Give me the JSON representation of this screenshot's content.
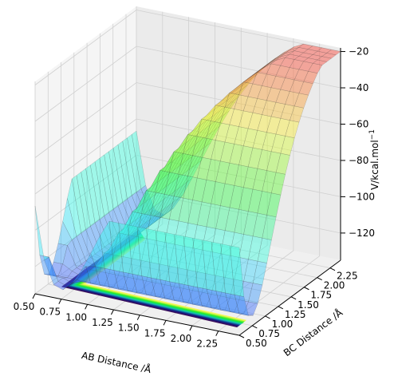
{
  "chart_data": {
    "type": "surface3d",
    "x_axis": {
      "label": "AB Distance /Å",
      "ticks": [
        "0.50",
        "0.75",
        "1.00",
        "1.25",
        "1.50",
        "1.75",
        "2.00",
        "2.25"
      ],
      "range": [
        0.5,
        2.45
      ]
    },
    "y_axis": {
      "label": "BC Distance /Å",
      "ticks": [
        "0.50",
        "0.75",
        "1.00",
        "1.25",
        "1.50",
        "1.75",
        "2.00",
        "2.25"
      ],
      "range": [
        0.5,
        2.45
      ]
    },
    "z_axis": {
      "label": "V/kcal.mol",
      "label_superscript": "−1",
      "ticks": [
        "−120",
        "−100",
        "−80",
        "−60",
        "−40",
        "−20"
      ],
      "range": [
        -135,
        -18
      ]
    },
    "colormap": "jet surface with viridis contours",
    "grid": true,
    "surface_description": {
      "min_energy": -130,
      "max_energy": -20,
      "saddle_point": {
        "x": 1.6,
        "y": 1.6,
        "v": -45
      }
    },
    "colors": {
      "surface_low": "#1a1aff",
      "surface_mid": "#33e0e0",
      "surface_high": "#ff3030",
      "contour_low": "#440154",
      "contour_high": "#fde725",
      "pane": "#f2f2f2"
    }
  }
}
